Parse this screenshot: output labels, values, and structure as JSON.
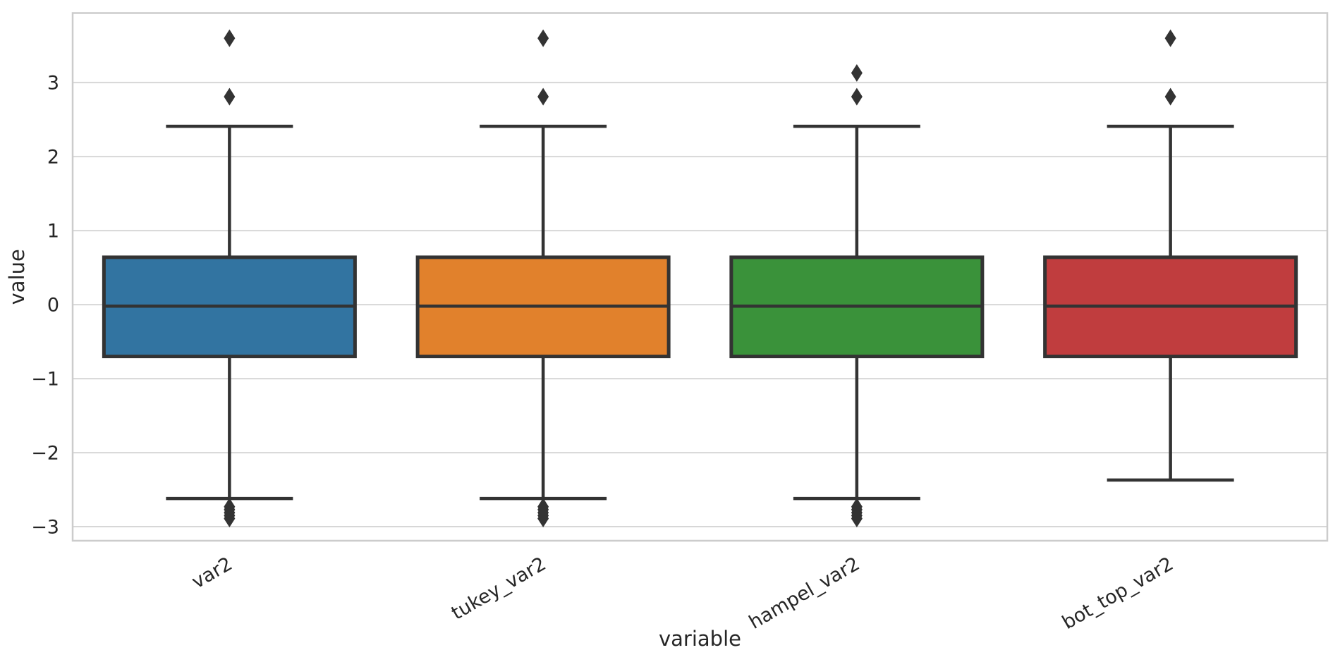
{
  "chart_data": {
    "type": "box",
    "title": "",
    "xlabel": "variable",
    "ylabel": "value",
    "ylim": [
      -3.19,
      3.94
    ],
    "yticks": [
      3,
      2,
      1,
      0,
      -1,
      -2,
      -3
    ],
    "grid": true,
    "legend": "none",
    "categories": [
      "var2",
      "tukey_var2",
      "hampel_var2",
      "bot_top_var2"
    ],
    "colors": {
      "box_fills": [
        "#3274a1",
        "#e1812c",
        "#3a923a",
        "#c03d3e"
      ],
      "line_color": "#333333",
      "text_color": "#262626",
      "grid_color": "#d7d7d7",
      "spine_color": "#cccccc",
      "background": "#ffffff"
    },
    "series": [
      {
        "name": "var2",
        "color": "#3274a1",
        "q1": -0.7,
        "median": -0.02,
        "q3": 0.64,
        "whisker_low": -2.62,
        "whisker_high": 2.41,
        "outliers_high": [
          3.6,
          2.81
        ],
        "outliers_low": [
          -2.73,
          -2.77,
          -2.81,
          -2.85,
          -2.89
        ]
      },
      {
        "name": "tukey_var2",
        "color": "#e1812c",
        "q1": -0.7,
        "median": -0.02,
        "q3": 0.64,
        "whisker_low": -2.62,
        "whisker_high": 2.41,
        "outliers_high": [
          3.6,
          2.81
        ],
        "outliers_low": [
          -2.73,
          -2.77,
          -2.81,
          -2.85,
          -2.89
        ]
      },
      {
        "name": "hampel_var2",
        "color": "#3a923a",
        "q1": -0.7,
        "median": -0.02,
        "q3": 0.64,
        "whisker_low": -2.62,
        "whisker_high": 2.41,
        "outliers_high": [
          3.13,
          2.81
        ],
        "outliers_low": [
          -2.73,
          -2.77,
          -2.81,
          -2.85,
          -2.89
        ]
      },
      {
        "name": "bot_top_var2",
        "color": "#c03d3e",
        "q1": -0.7,
        "median": -0.02,
        "q3": 0.64,
        "whisker_low": -2.37,
        "whisker_high": 2.41,
        "outliers_high": [
          3.6,
          2.81
        ],
        "outliers_low": []
      }
    ]
  }
}
